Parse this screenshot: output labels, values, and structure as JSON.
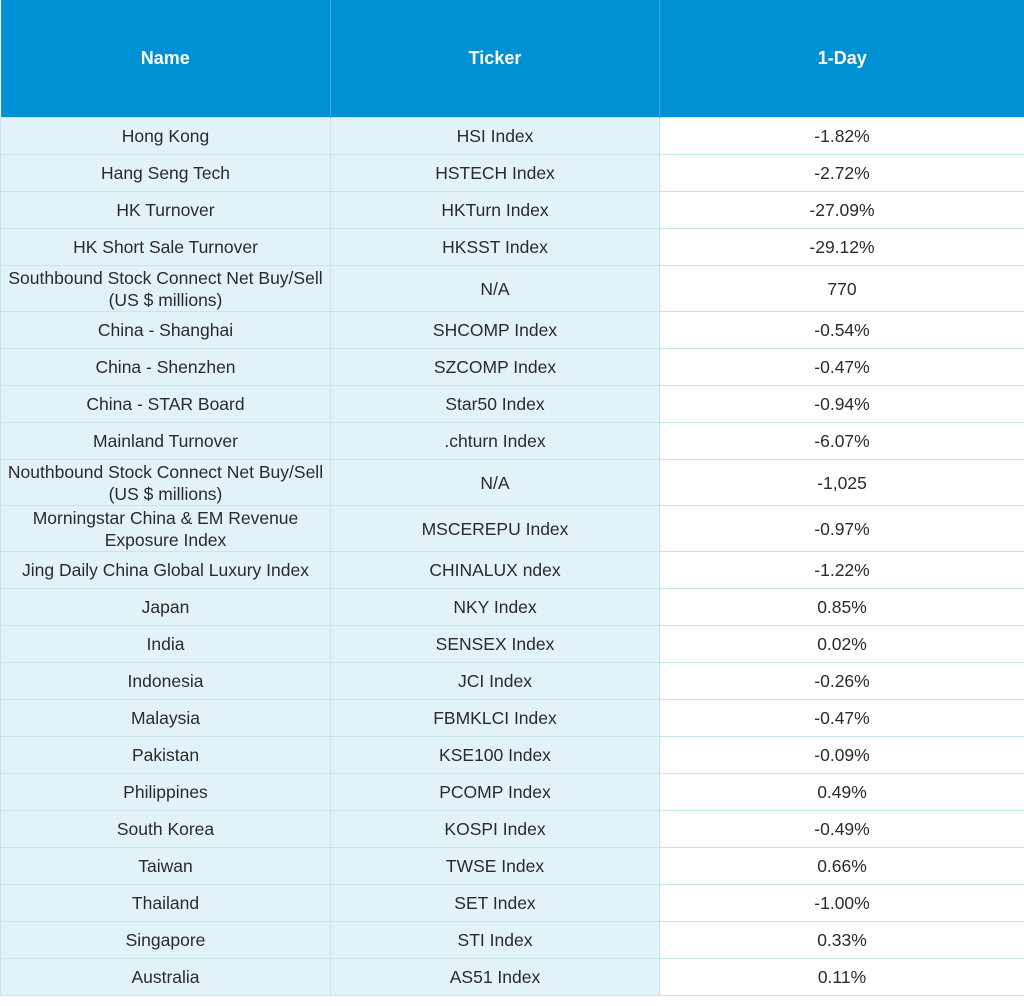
{
  "table": {
    "header": [
      "Name",
      "Ticker",
      "1-Day"
    ],
    "rows": [
      [
        "Hong Kong",
        "HSI Index",
        "-1.82%"
      ],
      [
        "Hang Seng Tech",
        "HSTECH Index",
        "-2.72%"
      ],
      [
        "HK Turnover",
        "HKTurn Index",
        "-27.09%"
      ],
      [
        "HK Short Sale Turnover",
        "HKSST Index",
        "-29.12%"
      ],
      [
        "Southbound Stock Connect Net Buy/Sell (US $ millions)",
        "N/A",
        "770"
      ],
      [
        "China - Shanghai",
        "SHCOMP Index",
        "-0.54%"
      ],
      [
        "China - Shenzhen",
        "SZCOMP Index",
        "-0.47%"
      ],
      [
        "China - STAR Board",
        "Star50 Index",
        "-0.94%"
      ],
      [
        "Mainland Turnover",
        ".chturn Index",
        "-6.07%"
      ],
      [
        "Nouthbound Stock Connect Net Buy/Sell (US $ millions)",
        "N/A",
        "-1,025"
      ],
      [
        "Morningstar China & EM Revenue Exposure Index",
        "MSCEREPU Index",
        "-0.97%"
      ],
      [
        "Jing Daily China Global Luxury Index",
        "CHINALUX ndex",
        "-1.22%"
      ],
      [
        "Japan",
        "NKY Index",
        "0.85%"
      ],
      [
        "India",
        "SENSEX Index",
        "0.02%"
      ],
      [
        "Indonesia",
        "JCI Index",
        "-0.26%"
      ],
      [
        "Malaysia",
        "FBMKLCI Index",
        "-0.47%"
      ],
      [
        "Pakistan",
        "KSE100 Index",
        "-0.09%"
      ],
      [
        "Philippines",
        "PCOMP Index",
        "0.49%"
      ],
      [
        "South Korea",
        "KOSPI Index",
        "-0.49%"
      ],
      [
        "Taiwan",
        "TWSE Index",
        "0.66%"
      ],
      [
        "Thailand",
        "SET Index",
        "-1.00%"
      ],
      [
        "Singapore",
        "STI Index",
        "0.33%"
      ],
      [
        "Australia",
        "AS51 Index",
        "0.11%"
      ]
    ]
  }
}
